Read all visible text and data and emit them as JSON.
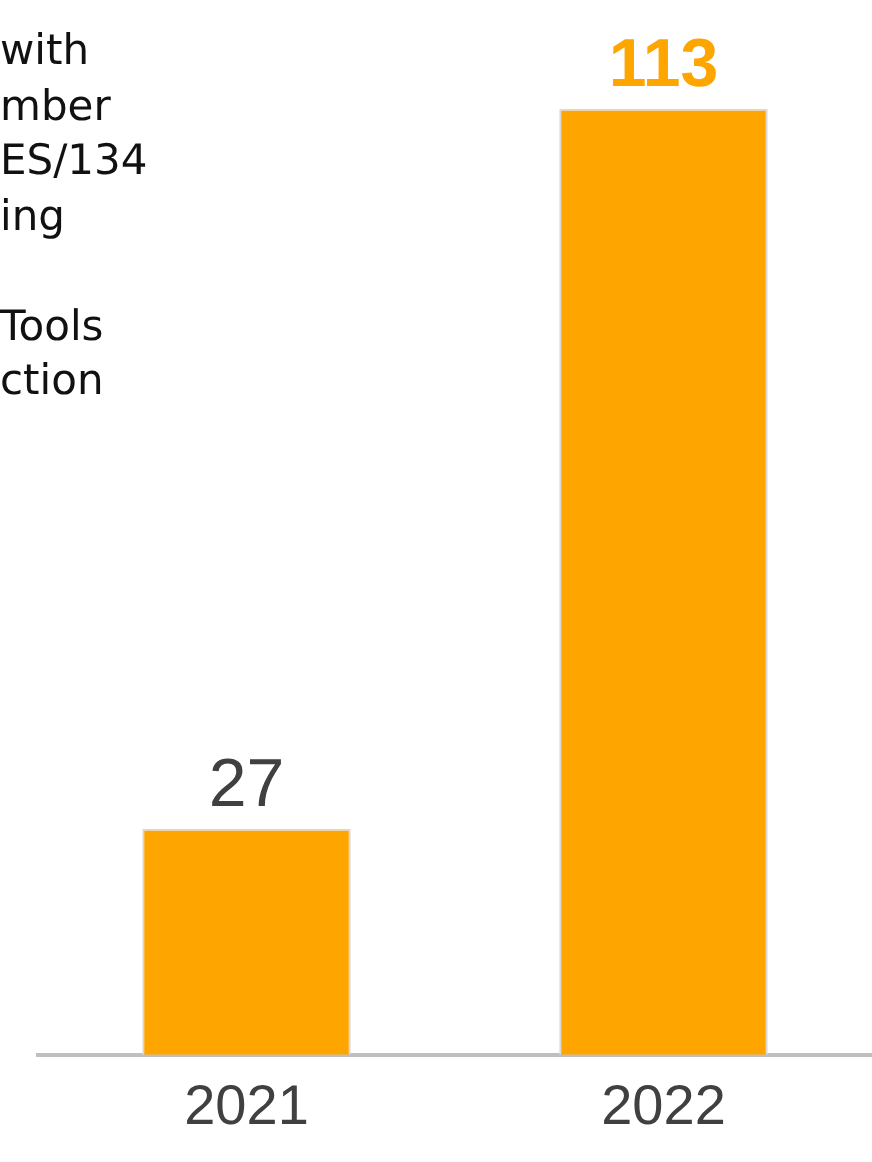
{
  "chart_data": {
    "type": "bar",
    "categories": [
      "2021",
      "2022"
    ],
    "values": [
      27,
      113
    ],
    "color": "#ffa500",
    "data_labels": true,
    "grid": false,
    "legend": false,
    "annotations": [
      "with\nmber\nES/134\ning",
      "Tools\nction"
    ]
  }
}
